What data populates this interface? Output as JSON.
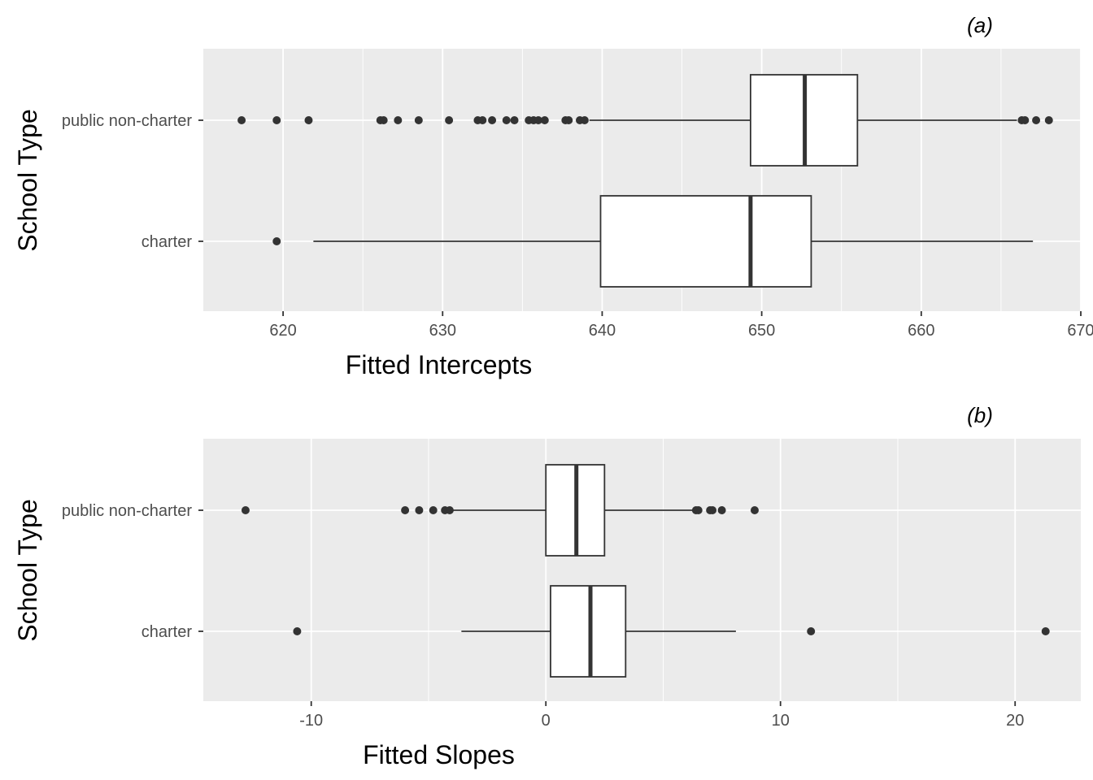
{
  "chart_data": [
    {
      "type": "boxplot",
      "tag": "(a)",
      "xlabel": "Fitted Intercepts",
      "ylabel": "School Type",
      "xlim": [
        615,
        670
      ],
      "x_ticks": [
        620,
        630,
        640,
        650,
        660,
        670
      ],
      "x_tick_labels": [
        "620",
        "630",
        "640",
        "650",
        "660",
        "670"
      ],
      "categories": [
        "public non-charter",
        "charter"
      ],
      "boxes": [
        {
          "category": "public non-charter",
          "whisker_low": 639.2,
          "q1": 649.3,
          "median": 652.7,
          "q3": 656.0,
          "whisker_high": 666.0,
          "outliers": [
            617.4,
            619.6,
            621.6,
            626.1,
            626.3,
            627.2,
            628.5,
            630.4,
            632.2,
            632.5,
            633.1,
            634.0,
            634.5,
            635.4,
            635.7,
            636.0,
            636.4,
            637.7,
            637.9,
            638.6,
            638.9,
            666.3,
            666.5,
            667.2,
            668.0
          ]
        },
        {
          "category": "charter",
          "whisker_low": 621.9,
          "q1": 639.9,
          "median": 649.3,
          "q3": 653.1,
          "whisker_high": 667.0,
          "outliers": [
            619.6
          ]
        }
      ],
      "grid": true
    },
    {
      "type": "boxplot",
      "tag": "(b)",
      "xlabel": "Fitted Slopes",
      "ylabel": "School Type",
      "xlim": [
        -14.6,
        22.8
      ],
      "x_ticks": [
        -10,
        0,
        10,
        20
      ],
      "x_tick_labels": [
        "-10",
        "0",
        "10",
        "20"
      ],
      "categories": [
        "public non-charter",
        "charter"
      ],
      "boxes": [
        {
          "category": "public non-charter",
          "whisker_low": -4.0,
          "q1": 0.0,
          "median": 1.3,
          "q3": 2.5,
          "whisker_high": 6.3,
          "outliers": [
            -12.8,
            -6.0,
            -5.4,
            -4.8,
            -4.3,
            -4.1,
            6.4,
            6.5,
            7.0,
            7.1,
            7.5,
            8.9
          ]
        },
        {
          "category": "charter",
          "whisker_low": -3.6,
          "q1": 0.2,
          "median": 1.9,
          "q3": 3.4,
          "whisker_high": 8.1,
          "outliers": [
            -10.6,
            11.3,
            21.3
          ]
        }
      ],
      "grid": true
    }
  ]
}
